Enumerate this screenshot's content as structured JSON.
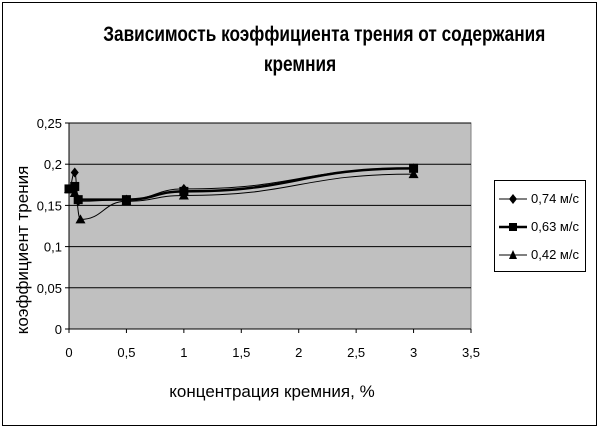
{
  "chart_data": {
    "type": "line",
    "title": [
      "Зависимость коэффициента трения от содержания",
      "кремния"
    ],
    "xlabel": "концентрация кремния, %",
    "ylabel": "коэффициент трения",
    "xlim": [
      0,
      3.5
    ],
    "ylim": [
      0,
      0.25
    ],
    "x_ticks": [
      "0",
      "0,5",
      "1",
      "1,5",
      "2",
      "2,5",
      "3",
      "3,5"
    ],
    "y_ticks": [
      "0",
      "0,05",
      "0,1",
      "0,15",
      "0,2",
      "0,25"
    ],
    "grid": true,
    "legend_position": "right",
    "plot_background": "#c0c0c0",
    "series": [
      {
        "name": "0,74 м/с",
        "marker": "diamond",
        "line_width": 1,
        "x": [
          0,
          0.05,
          0.08,
          0.5,
          1,
          3
        ],
        "y": [
          0.17,
          0.19,
          0.155,
          0.157,
          0.17,
          0.195
        ]
      },
      {
        "name": "0,63 м/с",
        "marker": "square",
        "line_width": 2.5,
        "x": [
          0,
          0.05,
          0.08,
          0.5,
          1,
          3
        ],
        "y": [
          0.17,
          0.173,
          0.157,
          0.157,
          0.167,
          0.195
        ]
      },
      {
        "name": "0,42 м/с",
        "marker": "triangle",
        "line_width": 1,
        "x": [
          0,
          0.05,
          0.1,
          0.5,
          1,
          3
        ],
        "y": [
          0.17,
          0.165,
          0.133,
          0.155,
          0.162,
          0.188
        ]
      }
    ]
  }
}
